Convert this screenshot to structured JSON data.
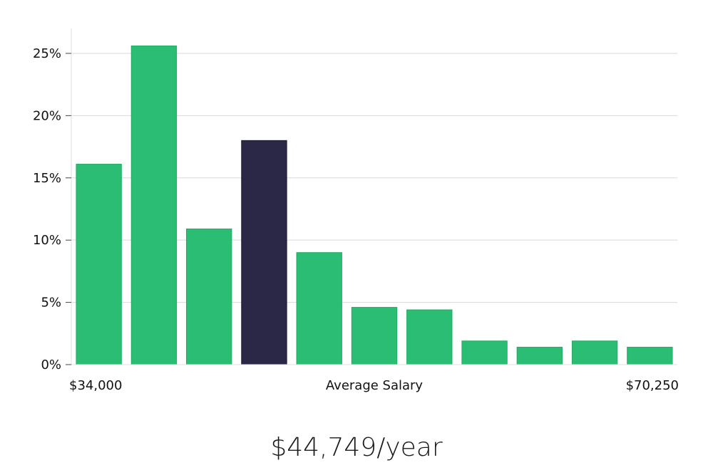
{
  "chart_data": {
    "type": "bar",
    "title": "",
    "xlabel": "Average Salary",
    "ylabel": "",
    "x_range_labels": [
      "$34,000",
      "$70,250"
    ],
    "values": [
      16.1,
      25.6,
      10.9,
      18.0,
      9.0,
      4.6,
      4.4,
      1.9,
      1.4,
      1.9,
      1.4
    ],
    "highlight_index": 3,
    "ylim": [
      0,
      27
    ],
    "yticks": [
      0,
      5,
      10,
      15,
      20,
      25
    ],
    "ytick_labels": [
      "0%",
      "5%",
      "10%",
      "15%",
      "20%",
      "25%"
    ],
    "grid": true,
    "colors": {
      "bar": "#2bbd74",
      "bar_edge": "#1fae63",
      "highlight": "#2a2747",
      "highlight_edge": "#1b1933",
      "grid": "#d9d9d9",
      "axis": "#e0e0e0"
    }
  },
  "summary": {
    "salary_text": "$44,749/year"
  }
}
